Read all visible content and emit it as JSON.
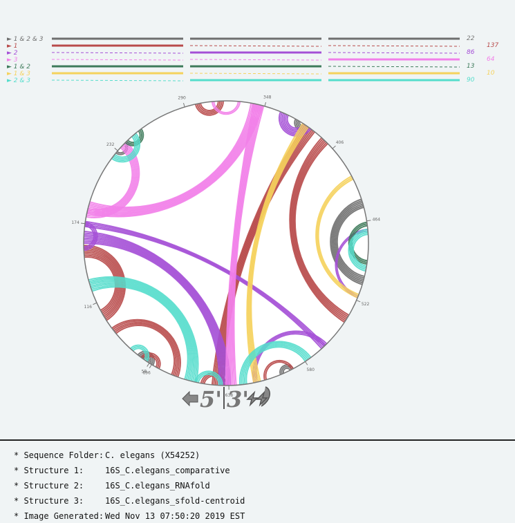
{
  "legend": {
    "rows": [
      {
        "label": "► 1 & 2 & 3",
        "color": "#6e6e6e",
        "styles": [
          "solid",
          "solid",
          "solid"
        ],
        "count": "22",
        "count_color": "#777777",
        "count_col": 0
      },
      {
        "label": "► 1",
        "color": "#b84a4a",
        "styles": [
          "solid",
          "dash",
          "dash"
        ],
        "count": "137",
        "count_color": "#b84a4a",
        "count_col": 1
      },
      {
        "label": "► 2",
        "color": "#a44fd6",
        "styles": [
          "dash",
          "solid",
          "dash"
        ],
        "count": "86",
        "count_color": "#a44fd6",
        "count_col": 0
      },
      {
        "label": "► 3",
        "color": "#f27fe9",
        "styles": [
          "dash",
          "dash",
          "solid"
        ],
        "count": "64",
        "count_color": "#f27fe9",
        "count_col": 1
      },
      {
        "label": "► 1 & 2",
        "color": "#3d7a5a",
        "styles": [
          "solid",
          "solid",
          "dash"
        ],
        "count": "13",
        "count_color": "#3d7a5a",
        "count_col": 0
      },
      {
        "label": "► 1 & 3",
        "color": "#f5d25c",
        "styles": [
          "solid",
          "dash",
          "solid"
        ],
        "count": "10",
        "count_color": "#f5d25c",
        "count_col": 1
      },
      {
        "label": "► 2 & 3",
        "color": "#55ddcc",
        "styles": [
          "dash",
          "solid",
          "solid"
        ],
        "count": "90",
        "count_color": "#55ddcc",
        "count_col": 0
      }
    ]
  },
  "circle": {
    "length": 640,
    "ticks": [
      "58",
      "116",
      "174",
      "232",
      "290",
      "348",
      "406",
      "464",
      "522",
      "580",
      "638",
      "696"
    ]
  },
  "orientation": {
    "five": "5'",
    "three": "3'"
  },
  "info": [
    {
      "key": "* Sequence Folder:",
      "value": "C. elegans (X54252)"
    },
    {
      "key": "* Structure 1:",
      "value": "16S_C.elegans_comparative"
    },
    {
      "key": "* Structure 2:",
      "value": "16S_C.elegans_RNAfold"
    },
    {
      "key": "* Structure 3:",
      "value": "16S_C.elegans_sfold-centroid"
    },
    {
      "key": "* Image Generated:",
      "value": "Wed Nov 13 07:50:20 2019 EST"
    }
  ],
  "arcs": [
    {
      "cat": "1&2&3",
      "a": 372,
      "b": 383,
      "n": 4
    },
    {
      "cat": "1&2&3",
      "a": 448,
      "b": 510,
      "n": 6
    },
    {
      "cat": "1&2&3",
      "a": 695,
      "b": 708,
      "n": 5
    },
    {
      "cat": "1&2&3",
      "a": 590,
      "b": 600,
      "n": 3
    },
    {
      "cat": "1&2&3",
      "a": 230,
      "b": 240,
      "n": 2
    },
    {
      "cat": "1",
      "a": 380,
      "b": 650,
      "n": 8
    },
    {
      "cat": "1",
      "a": 395,
      "b": 540,
      "n": 6
    },
    {
      "cat": "1",
      "a": 150,
      "b": 110,
      "n": 8
    },
    {
      "cat": "1",
      "a": 90,
      "b": 40,
      "n": 5
    },
    {
      "cat": "1",
      "a": 298,
      "b": 318,
      "n": 4
    },
    {
      "cat": "1",
      "a": 640,
      "b": 658,
      "n": 3
    },
    {
      "cat": "1",
      "a": 690,
      "b": 705,
      "n": 3
    },
    {
      "cat": "1",
      "a": 590,
      "b": 612,
      "n": 2
    },
    {
      "cat": "2",
      "a": 172,
      "b": 565,
      "n": 4
    },
    {
      "cat": "2",
      "a": 160,
      "b": 645,
      "n": 8
    },
    {
      "cat": "2",
      "a": 360,
      "b": 385,
      "n": 6
    },
    {
      "cat": "2",
      "a": 560,
      "b": 620,
      "n": 3
    },
    {
      "cat": "2",
      "a": 470,
      "b": 520,
      "n": 2
    },
    {
      "cat": "2",
      "a": 155,
      "b": 175,
      "n": 3
    },
    {
      "cat": "3",
      "a": 340,
      "b": 640,
      "n": 7
    },
    {
      "cat": "3",
      "a": 338,
      "b": 190,
      "n": 8
    },
    {
      "cat": "3",
      "a": 235,
      "b": 185,
      "n": 6
    },
    {
      "cat": "3",
      "a": 310,
      "b": 330,
      "n": 2
    },
    {
      "cat": "1&2",
      "a": 240,
      "b": 255,
      "n": 3
    },
    {
      "cat": "1&2",
      "a": 465,
      "b": 495,
      "n": 3
    },
    {
      "cat": "1&3",
      "a": 378,
      "b": 620,
      "n": 5
    },
    {
      "cat": "1&3",
      "a": 430,
      "b": 520,
      "n": 3
    },
    {
      "cat": "2&3",
      "a": 125,
      "b": 30,
      "n": 8
    },
    {
      "cat": "2&3",
      "a": 60,
      "b": 75,
      "n": 3
    },
    {
      "cat": "2&3",
      "a": 575,
      "b": 630,
      "n": 5
    },
    {
      "cat": "2&3",
      "a": 470,
      "b": 500,
      "n": 4
    },
    {
      "cat": "2&3",
      "a": 225,
      "b": 250,
      "n": 4
    },
    {
      "cat": "2&3",
      "a": 20,
      "b": 5,
      "n": 3
    }
  ],
  "colors": {
    "1&2&3": "#6e6e6e",
    "1": "#b84a4a",
    "2": "#a44fd6",
    "3": "#f27fe9",
    "1&2": "#3d7a5a",
    "1&3": "#f5d25c",
    "2&3": "#55ddcc",
    "circle_stroke": "#888888",
    "circle_fill": "#ffffff"
  }
}
